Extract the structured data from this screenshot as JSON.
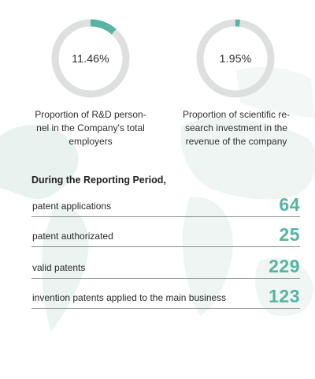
{
  "colors": {
    "accent": "#55b5a2",
    "ring_track": "#dde0df",
    "map": "#e4efeb"
  },
  "metrics": [
    {
      "percent_text": "11.46%",
      "percent": 11.46,
      "caption_lines": [
        "Proportion of R&D person-",
        "nel in the Company's total",
        "employers"
      ]
    },
    {
      "percent_text": "1.95%",
      "percent": 1.95,
      "caption_lines": [
        "Proportion of scientific re-",
        "search investment in the",
        "revenue of the company"
      ]
    }
  ],
  "section_title": "During the Reporting Period,",
  "stats": [
    {
      "label": "patent applications",
      "value": "64"
    },
    {
      "label": "patent authorizated",
      "value": "25"
    },
    {
      "label": "valid patents",
      "value": "229"
    },
    {
      "label": "invention patents applied to the main business",
      "value": "123"
    }
  ]
}
